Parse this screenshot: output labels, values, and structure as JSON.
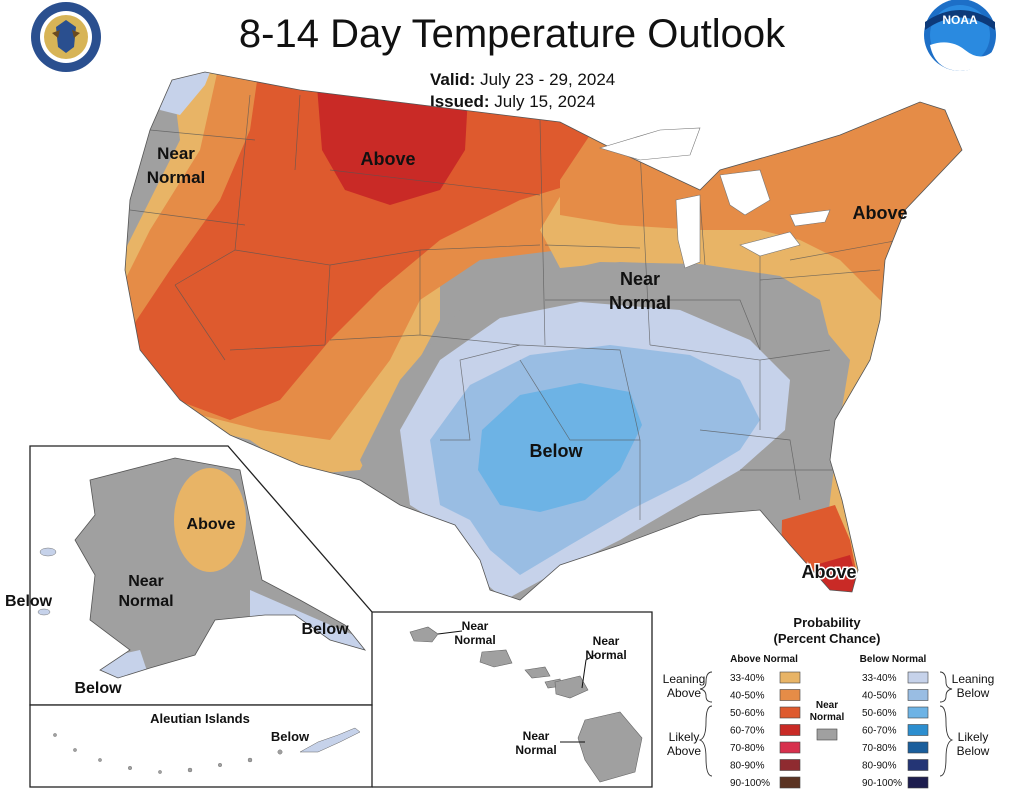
{
  "title": "8-14 Day Temperature Outlook",
  "valid_label": "Valid:",
  "valid_value": "July 23 - 29, 2024",
  "issued_label": "Issued:",
  "issued_value": "July 15, 2024",
  "colors": {
    "above_33_40": "#e8b466",
    "above_40_50": "#e58c47",
    "above_50_60": "#de5a2e",
    "above_60_70": "#c92a26",
    "above_70_80": "#d7304d",
    "above_80_90": "#8f2b30",
    "above_90_100": "#5b3322",
    "near_normal": "#a0a0a0",
    "below_33_40": "#c6d2ea",
    "below_40_50": "#99bde3",
    "below_50_60": "#6db3e5",
    "below_60_70": "#2c8ecf",
    "below_70_80": "#1a5e9c",
    "below_80_90": "#243575",
    "below_90_100": "#1d1d4e"
  },
  "map_labels": {
    "conus_near_normal_west": "Near Normal",
    "conus_above_north": "Above",
    "conus_above_northeast": "Above",
    "conus_near_normal_central": "Near Normal",
    "conus_below_south": "Below",
    "conus_above_florida": "Above",
    "alaska_above": "Above",
    "alaska_near_normal": "Near Normal",
    "alaska_below_west": "Below",
    "alaska_below_southeast": "Below",
    "alaska_below_southwest": "Below",
    "aleutian_title": "Aleutian Islands",
    "aleutian_below": "Below",
    "hawaii_near_normal_1": "Near Normal",
    "hawaii_near_normal_2": "Near Normal",
    "hawaii_near_normal_3": "Near Normal"
  },
  "legend": {
    "title": "Probability",
    "subtitle": "(Percent Chance)",
    "above_header": "Above Normal",
    "below_header": "Below Normal",
    "near_label": "Near Normal",
    "leaning_above": "Leaning Above",
    "likely_above": "Likely Above",
    "leaning_below": "Leaning Below",
    "likely_below": "Likely Below",
    "ranges": [
      "33-40%",
      "40-50%",
      "50-60%",
      "60-70%",
      "70-80%",
      "80-90%",
      "90-100%"
    ]
  },
  "logos": {
    "left": "department-of-commerce-seal",
    "right": "noaa-logo",
    "noaa_text": "NOAA"
  }
}
